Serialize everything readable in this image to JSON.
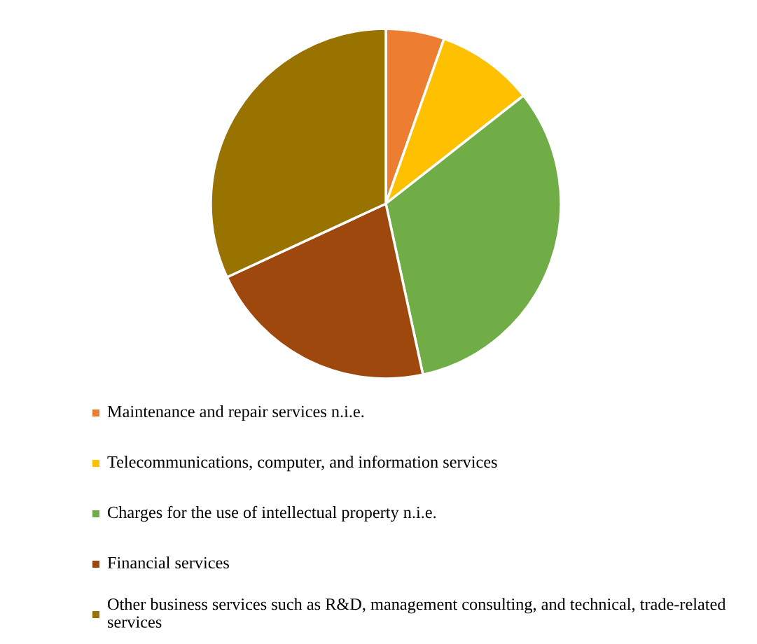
{
  "chart_data": {
    "type": "pie",
    "categories": [
      "Maintenance and repair services n.i.e.",
      "Telecommunications, computer, and information services",
      "Charges for the use of intellectual property n.i.e.",
      "Financial services",
      "Other business services such as R&D, management consulting, and technical, trade-related services"
    ],
    "values": [
      5.4,
      9.0,
      32.2,
      21.5,
      31.9
    ],
    "colors": [
      "#ed7d31",
      "#ffc000",
      "#70ad47",
      "#9e480e",
      "#997300"
    ],
    "legend": "bottom"
  }
}
